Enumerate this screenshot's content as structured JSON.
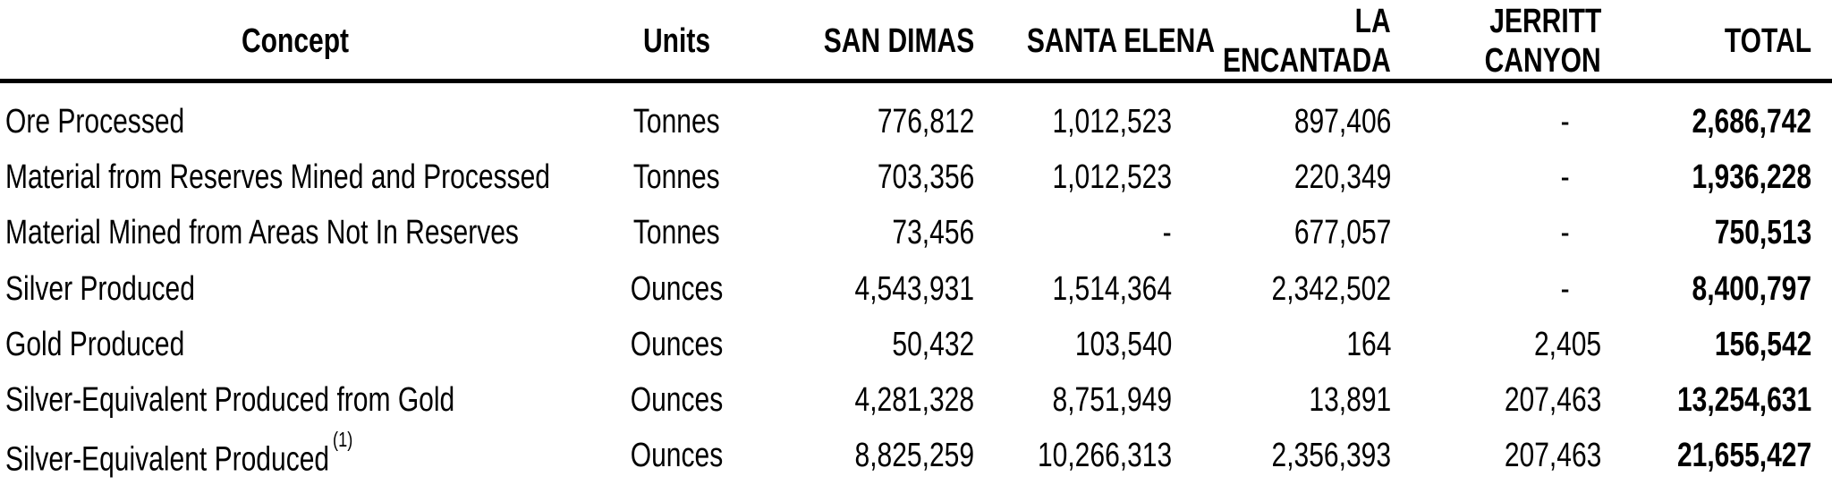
{
  "table": {
    "text_color": "#000000",
    "rule_color": "#000000",
    "header": {
      "concept": "Concept",
      "units": "Units",
      "san_dimas": "SAN DIMAS",
      "santa_elena": "SANTA ELENA",
      "la_encantada_line1": "LA",
      "la_encantada_line2": "ENCANTADA",
      "jerritt_canyon_line1": "JERRITT",
      "jerritt_canyon_line2": "CANYON",
      "total": "TOTAL"
    },
    "rows": [
      {
        "concept": "Ore Processed",
        "units": "Tonnes",
        "san_dimas": "776,812",
        "santa_elena": "1,012,523",
        "la_encantada": "897,406",
        "jerritt_canyon": "-",
        "total": "2,686,742"
      },
      {
        "concept": "Material from Reserves Mined and Processed",
        "units": "Tonnes",
        "san_dimas": "703,356",
        "santa_elena": "1,012,523",
        "la_encantada": "220,349",
        "jerritt_canyon": "-",
        "total": "1,936,228"
      },
      {
        "concept": "Material Mined from Areas Not In Reserves",
        "units": "Tonnes",
        "san_dimas": "73,456",
        "santa_elena": "-",
        "la_encantada": "677,057",
        "jerritt_canyon": "-",
        "total": "750,513"
      },
      {
        "concept": "Silver Produced",
        "units": "Ounces",
        "san_dimas": "4,543,931",
        "santa_elena": "1,514,364",
        "la_encantada": "2,342,502",
        "jerritt_canyon": "-",
        "total": "8,400,797"
      },
      {
        "concept": "Gold Produced",
        "units": "Ounces",
        "san_dimas": "50,432",
        "santa_elena": "103,540",
        "la_encantada": "164",
        "jerritt_canyon": "2,405",
        "total": "156,542"
      },
      {
        "concept": "Silver-Equivalent Produced from Gold",
        "units": "Ounces",
        "san_dimas": "4,281,328",
        "santa_elena": "8,751,949",
        "la_encantada": "13,891",
        "jerritt_canyon": "207,463",
        "total": "13,254,631"
      },
      {
        "concept": "Silver-Equivalent Produced",
        "concept_footnote": "(1)",
        "units": "Ounces",
        "san_dimas": "8,825,259",
        "santa_elena": "10,266,313",
        "la_encantada": "2,356,393",
        "jerritt_canyon": "207,463",
        "total": "21,655,427"
      }
    ]
  }
}
